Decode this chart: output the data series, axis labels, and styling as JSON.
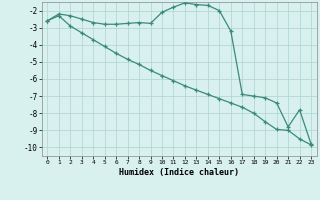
{
  "line1_x": [
    0,
    1,
    2,
    3,
    4,
    5,
    6,
    7,
    8,
    9,
    10,
    11,
    12,
    13,
    14,
    15,
    16,
    17,
    18,
    19,
    20,
    21,
    22,
    23
  ],
  "line1_y": [
    -2.6,
    -2.2,
    -2.3,
    -2.5,
    -2.7,
    -2.8,
    -2.8,
    -2.75,
    -2.7,
    -2.75,
    -2.1,
    -1.8,
    -1.55,
    -1.65,
    -1.7,
    -2.0,
    -3.2,
    -6.9,
    -7.0,
    -7.1,
    -7.4,
    -8.8,
    -7.8,
    -9.8
  ],
  "line2_x": [
    0,
    1,
    2,
    3,
    4,
    5,
    6,
    7,
    8,
    9,
    10,
    11,
    12,
    13,
    14,
    15,
    16,
    17,
    18,
    19,
    20,
    21,
    22,
    23
  ],
  "line2_y": [
    -2.6,
    -2.3,
    -2.9,
    -3.3,
    -3.7,
    -4.1,
    -4.5,
    -4.85,
    -5.15,
    -5.5,
    -5.8,
    -6.1,
    -6.4,
    -6.65,
    -6.9,
    -7.15,
    -7.4,
    -7.65,
    -8.0,
    -8.5,
    -8.95,
    -9.0,
    -9.5,
    -9.85
  ],
  "line_color": "#3a8a7a",
  "bg_color": "#d8f0ee",
  "grid_color": "#aed4d0",
  "xlabel": "Humidex (Indice chaleur)",
  "xlim": [
    -0.5,
    23.5
  ],
  "ylim": [
    -10.5,
    -1.5
  ],
  "yticks": [
    -2,
    -3,
    -4,
    -5,
    -6,
    -7,
    -8,
    -9,
    -10
  ],
  "xticks": [
    0,
    1,
    2,
    3,
    4,
    5,
    6,
    7,
    8,
    9,
    10,
    11,
    12,
    13,
    14,
    15,
    16,
    17,
    18,
    19,
    20,
    21,
    22,
    23
  ],
  "marker": "+",
  "markersize": 3,
  "linewidth": 0.9
}
